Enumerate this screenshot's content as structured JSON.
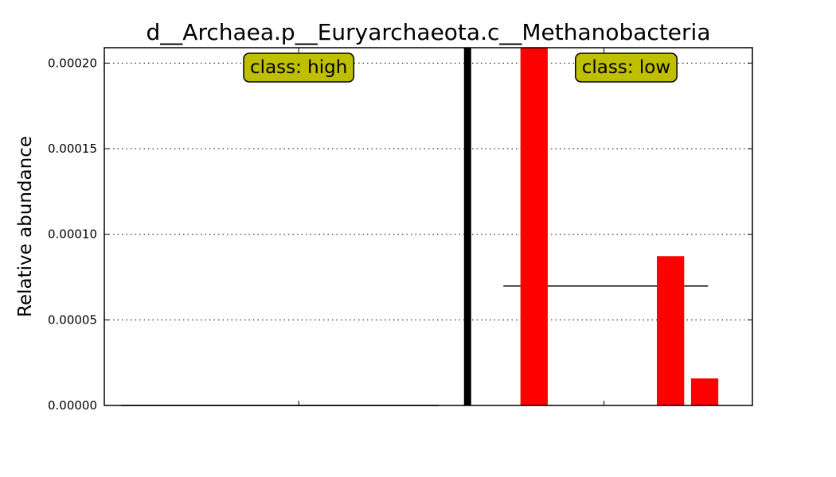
{
  "chart_data": {
    "type": "bar",
    "title": "d__Archaea.p__Euryarchaeota.c__Methanobacteria",
    "xlabel": "",
    "ylabel": "Relative abundance",
    "ylim": [
      0,
      0.000209
    ],
    "yticks": [
      "0.00000",
      "0.00005",
      "0.00010",
      "0.00015",
      "0.00020"
    ],
    "ytick_values": [
      0,
      5e-05,
      0.0001,
      0.00015,
      0.0002
    ],
    "grid": "horizontal dotted",
    "x_range": [
      0,
      19
    ],
    "bars": [
      {
        "x": 12.6,
        "value": 0.000209,
        "group": "low"
      },
      {
        "x": 16.6,
        "value": 8.72e-05,
        "group": "low"
      },
      {
        "x": 17.6,
        "value": 1.58e-05,
        "group": "low"
      }
    ],
    "bar_width": 0.8,
    "bar_color": "#ff0000",
    "separator_x": 10.65,
    "mean_lines": [
      {
        "group": "high",
        "x0": 0.5,
        "x1": 9.8,
        "value": 0
      },
      {
        "group": "low",
        "x0": 11.7,
        "x1": 17.7,
        "value": 6.98e-05
      }
    ],
    "class_labels": [
      {
        "text": "class: high",
        "x": 5.7
      },
      {
        "text": "class: low",
        "x": 15.3
      }
    ],
    "class_label_color": "#bfbf00",
    "x_minor_ticks": [
      5.7,
      14.65
    ]
  }
}
